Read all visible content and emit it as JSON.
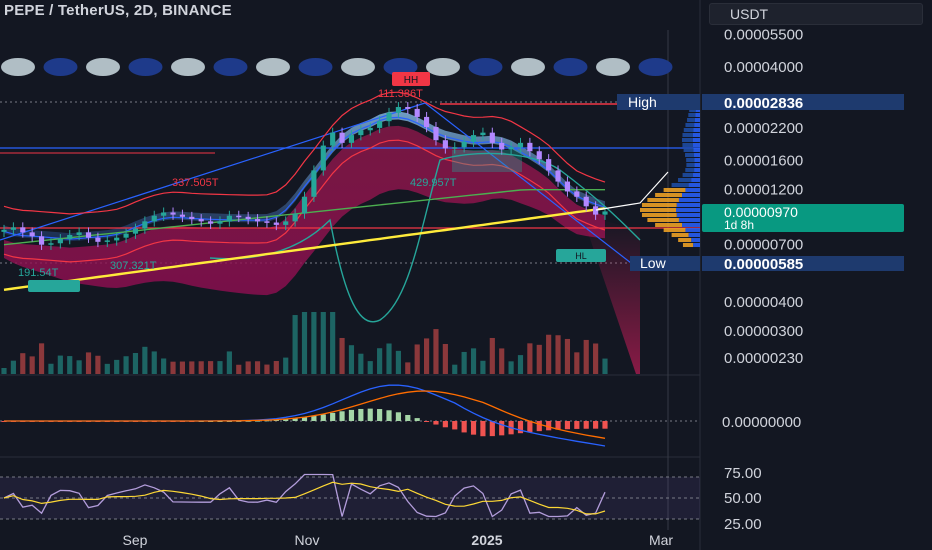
{
  "header": {
    "title": "PEPE / TetherUS, 2D, BINANCE",
    "currency": "USDT"
  },
  "chart_data": {
    "type": "candlestick",
    "symbol": "PEPE / TetherUS",
    "interval": "2D",
    "exchange": "BINANCE",
    "price_axis": {
      "scale": "log",
      "ticks": [
        "0.00005500",
        "0.00004000",
        "0.00002200",
        "0.00001600",
        "0.00001200",
        "0.00000700",
        "0.00000400",
        "0.00000300",
        "0.00000230"
      ]
    },
    "price_labels": {
      "high_label": "High",
      "high_value": "0.00002836",
      "current_value": "0.00000970",
      "countdown": "1d 8h",
      "low_label": "Low",
      "low_value": "0.00000585"
    },
    "time_axis": [
      "Sep",
      "Nov",
      "2025",
      "Mar"
    ],
    "annotations": {
      "hh": "HH",
      "hh_value": "111.386T",
      "val_1": "337.505T",
      "val_2": "429.957T",
      "val_3": "191.54T",
      "val_4": "307.321T",
      "hl": "HL"
    },
    "close_series": [
      8.1e-06,
      8.3e-06,
      7.9e-06,
      7.6e-06,
      7e-06,
      7.1e-06,
      7.4e-06,
      7.7e-06,
      7.9e-06,
      7.5e-06,
      7.2e-06,
      7.3e-06,
      7.5e-06,
      7.8e-06,
      8.2e-06,
      8.8e-06,
      9.3e-06,
      9.6e-06,
      9.4e-06,
      9.2e-06,
      9e-06,
      8.8e-06,
      8.6e-06,
      8.8e-06,
      9.3e-06,
      9.2e-06,
      9e-06,
      8.8e-06,
      8.7e-06,
      8.5e-06,
      8.8e-06,
      9.5e-06,
      1.12e-05,
      1.45e-05,
      1.85e-05,
      2.1e-05,
      1.9e-05,
      2.05e-05,
      2.15e-05,
      2.2e-05,
      2.35e-05,
      2.55e-05,
      2.7e-05,
      2.65e-05,
      2.45e-05,
      2.22e-05,
      1.95e-05,
      1.8e-05,
      1.82e-05,
      1.92e-05,
      2.05e-05,
      2.1e-05,
      1.9e-05,
      1.78e-05,
      1.82e-05,
      1.9e-05,
      1.75e-05,
      1.62e-05,
      1.45e-05,
      1.3e-05,
      1.18e-05,
      1.12e-05,
      1.02e-05,
      9.4e-06,
      9.7e-06
    ],
    "macd_pane": {
      "zero_label": "0.00000000"
    },
    "rsi_pane": {
      "ticks": [
        "75.00",
        "50.00",
        "25.00"
      ]
    }
  }
}
